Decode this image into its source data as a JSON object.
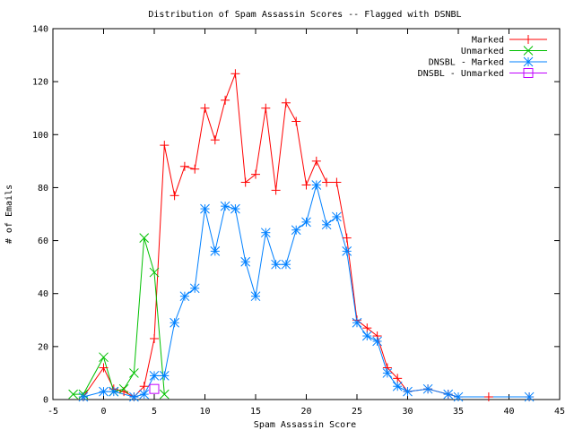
{
  "chart_data": {
    "type": "line",
    "title": "Distribution of Spam Assassin Scores -- Flagged with DSNBL",
    "xlabel": "Spam Assassin Score",
    "ylabel": "# of Emails",
    "xlim": [
      -5,
      45
    ],
    "ylim": [
      0,
      140
    ],
    "xticks": [
      -5,
      0,
      5,
      10,
      15,
      20,
      25,
      30,
      35,
      40,
      45
    ],
    "yticks": [
      0,
      20,
      40,
      60,
      80,
      100,
      120,
      140
    ],
    "legend_position": "top-right",
    "grid": false,
    "series": [
      {
        "name": "Marked",
        "color": "#ff0000",
        "marker": "plus",
        "points": [
          [
            -2,
            1
          ],
          [
            0,
            12
          ],
          [
            1,
            4
          ],
          [
            2,
            3
          ],
          [
            3,
            1
          ],
          [
            4,
            5
          ],
          [
            5,
            23
          ],
          [
            6,
            96
          ],
          [
            7,
            77
          ],
          [
            8,
            88
          ],
          [
            9,
            87
          ],
          [
            10,
            110
          ],
          [
            11,
            98
          ],
          [
            12,
            113
          ],
          [
            13,
            123
          ],
          [
            14,
            82
          ],
          [
            15,
            85
          ],
          [
            16,
            110
          ],
          [
            17,
            79
          ],
          [
            18,
            112
          ],
          [
            19,
            105
          ],
          [
            20,
            81
          ],
          [
            21,
            90
          ],
          [
            22,
            82
          ],
          [
            23,
            82
          ],
          [
            24,
            61
          ],
          [
            25,
            30
          ],
          [
            26,
            27
          ],
          [
            27,
            24
          ],
          [
            28,
            12
          ],
          [
            29,
            8
          ],
          [
            30,
            3
          ],
          [
            32,
            4
          ],
          [
            34,
            2
          ],
          [
            35,
            1
          ],
          [
            38,
            1
          ],
          [
            42,
            1
          ]
        ]
      },
      {
        "name": "Unmarked",
        "color": "#00c000",
        "marker": "cross",
        "points": [
          [
            -3,
            2
          ],
          [
            -2,
            2
          ],
          [
            0,
            16
          ],
          [
            1,
            3
          ],
          [
            2,
            4
          ],
          [
            3,
            10
          ],
          [
            4,
            61
          ],
          [
            5,
            48
          ],
          [
            6,
            2
          ]
        ]
      },
      {
        "name": "DNSBL - Marked",
        "color": "#0080ff",
        "marker": "star",
        "points": [
          [
            -2,
            1
          ],
          [
            0,
            3
          ],
          [
            1,
            3
          ],
          [
            3,
            1
          ],
          [
            4,
            2
          ],
          [
            5,
            9
          ],
          [
            6,
            9
          ],
          [
            7,
            29
          ],
          [
            8,
            39
          ],
          [
            9,
            42
          ],
          [
            10,
            72
          ],
          [
            11,
            56
          ],
          [
            12,
            73
          ],
          [
            13,
            72
          ],
          [
            14,
            52
          ],
          [
            15,
            39
          ],
          [
            16,
            63
          ],
          [
            17,
            51
          ],
          [
            18,
            51
          ],
          [
            19,
            64
          ],
          [
            20,
            67
          ],
          [
            21,
            81
          ],
          [
            22,
            66
          ],
          [
            23,
            69
          ],
          [
            24,
            56
          ],
          [
            25,
            29
          ],
          [
            26,
            24
          ],
          [
            27,
            22
          ],
          [
            28,
            10
          ],
          [
            29,
            5
          ],
          [
            30,
            3
          ],
          [
            32,
            4
          ],
          [
            34,
            2
          ],
          [
            35,
            1
          ],
          [
            42,
            1
          ]
        ]
      },
      {
        "name": "DNSBL - Unmarked",
        "color": "#c000ff",
        "marker": "square",
        "points": [
          [
            5,
            4
          ]
        ]
      }
    ]
  }
}
